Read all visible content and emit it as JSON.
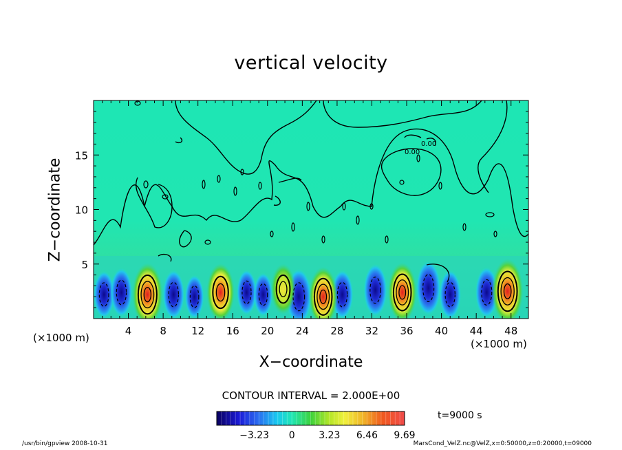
{
  "chart_data": {
    "type": "heatmap",
    "title": "vertical velocity",
    "xlabel": "X−coordinate",
    "ylabel": "Z−coordinate",
    "x_unit_left": "(×1000 m)",
    "x_unit_right": "(×1000 m)",
    "xlim": [
      0,
      50
    ],
    "ylim": [
      0,
      20
    ],
    "x_ticks": [
      4,
      8,
      12,
      16,
      20,
      24,
      28,
      32,
      36,
      40,
      44,
      48
    ],
    "y_ticks": [
      5,
      10,
      15
    ],
    "contour_interval": "CONTOUR INTERVAL = 2.000E+00",
    "time_label": "t=9000 s",
    "colorbar": {
      "min": -6.46,
      "max": 9.69,
      "tick_values": [
        -3.23,
        0,
        3.23,
        6.46,
        9.69
      ],
      "tick_labels": [
        "−3.23",
        "0",
        "3.23",
        "6.46",
        "9.69"
      ]
    },
    "updrafts": [
      {
        "x": 6.2,
        "z": 2.2,
        "w": 8.5
      },
      {
        "x": 14.6,
        "z": 2.4,
        "w": 7.0
      },
      {
        "x": 21.8,
        "z": 2.7,
        "w": 5.0
      },
      {
        "x": 26.4,
        "z": 2.0,
        "w": 7.5
      },
      {
        "x": 35.5,
        "z": 2.4,
        "w": 7.5
      },
      {
        "x": 47.6,
        "z": 2.5,
        "w": 9.0
      }
    ],
    "downdrafts": [
      {
        "x": 1.2,
        "z": 2.2,
        "w": -4.0
      },
      {
        "x": 3.2,
        "z": 2.4,
        "w": -4.5
      },
      {
        "x": 9.2,
        "z": 2.2,
        "w": -4.5
      },
      {
        "x": 11.6,
        "z": 2.0,
        "w": -3.0
      },
      {
        "x": 17.6,
        "z": 2.4,
        "w": -3.5
      },
      {
        "x": 19.5,
        "z": 2.2,
        "w": -3.0
      },
      {
        "x": 23.6,
        "z": 2.0,
        "w": -6.5
      },
      {
        "x": 28.6,
        "z": 2.2,
        "w": -4.5
      },
      {
        "x": 32.4,
        "z": 2.6,
        "w": -5.5
      },
      {
        "x": 38.5,
        "z": 2.8,
        "w": -6.0
      },
      {
        "x": 41.0,
        "z": 2.2,
        "w": -4.5
      },
      {
        "x": 45.2,
        "z": 2.4,
        "w": -5.0
      }
    ]
  },
  "footer": {
    "left": "/usr/bin/gpview   2008-10-31",
    "right": "MarsCond_VelZ.nc@VelZ,x=0:50000,z=0:20000,t=09000"
  }
}
